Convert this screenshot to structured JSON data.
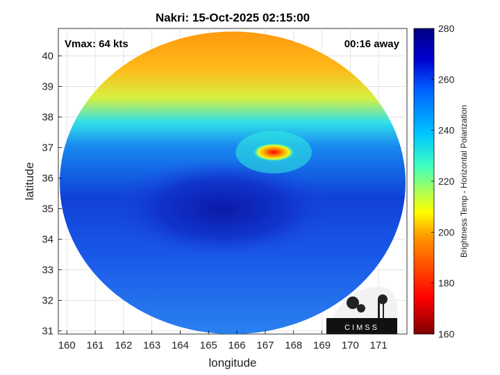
{
  "chart_data": {
    "type": "heatmap",
    "title": "Nakri: 15-Oct-2025 02:15:00",
    "annotations": {
      "left": "Vmax: 64 kts",
      "right": "00:16 away"
    },
    "xlabel": "longitude",
    "ylabel": "latitude",
    "xlim": [
      159.7,
      172.0
    ],
    "ylim": [
      30.9,
      40.9
    ],
    "xticks": [
      "160",
      "161",
      "162",
      "163",
      "164",
      "165",
      "166",
      "167",
      "168",
      "169",
      "170",
      "171"
    ],
    "yticks": [
      "31",
      "32",
      "33",
      "34",
      "35",
      "36",
      "37",
      "38",
      "39",
      "40"
    ],
    "grid": true,
    "colorbar": {
      "label": "Brightness Temp - Horizontal Polarization",
      "range": [
        160,
        280
      ],
      "ticks": [
        "160",
        "180",
        "200",
        "220",
        "240",
        "260",
        "280"
      ],
      "colormap": "jet"
    },
    "swath": {
      "center_lon": 165.85,
      "center_lat": 35.85,
      "radius_deg_lon": 6.1,
      "radius_deg_lat": 4.95
    },
    "features": [
      {
        "name": "cold-band-north",
        "lat_min": 38.2,
        "lat_max": 40.9,
        "value": 200
      },
      {
        "name": "warm-ocean-core",
        "center_lon": 165.5,
        "center_lat": 35.0,
        "value": 268
      },
      {
        "name": "storm-eyewall",
        "center_lon": 167.3,
        "center_lat": 36.85,
        "value": 175
      }
    ],
    "logo": "CIMSS"
  }
}
